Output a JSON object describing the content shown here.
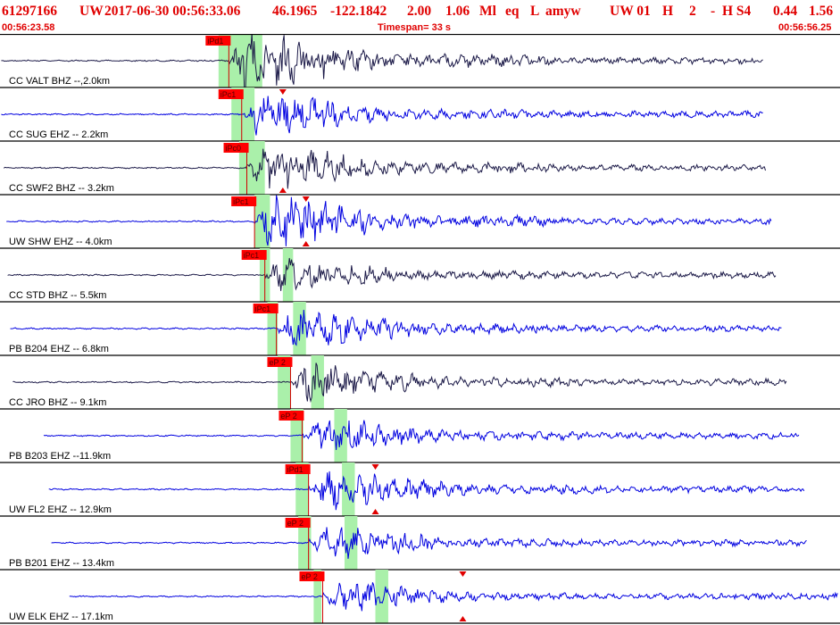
{
  "header": {
    "event_id": "61297166",
    "network": "UW",
    "datetime": "2017-06-30 00:56:33.06",
    "lat": "46.1965",
    "lon": "-122.1842",
    "depth": "2.00",
    "magnitude": "1.06",
    "mag_type": "Ml",
    "event_type": "eq",
    "status": "L",
    "analyst": "amyw",
    "solution": "UW 01",
    "quality": "H",
    "count": "2",
    "flag": "-",
    "review": "H S4",
    "rms": "0.44",
    "err": "1.56"
  },
  "time_bar": {
    "start": "00:56:23.58",
    "timespan": "Timespan=  33 s",
    "end": "00:56:56.25"
  },
  "colors": {
    "header_text": "#e00000",
    "divider": "#000000",
    "pick_flag": "#ff0000",
    "pick_line": "#d00000",
    "window": "#aaf0aa",
    "dark_trace": "#1c1a48",
    "blue_trace": "#0000e0",
    "label_text": "#000000",
    "marker": "#e00000"
  },
  "chart_data": {
    "type": "line",
    "title": "",
    "xlim": [
      0,
      32.67
    ],
    "traces": [
      {
        "label": "CC VALT BHZ --,2.0km",
        "pick": "iPd1",
        "pick_t": 8.9,
        "win": [
          [
            8.5,
            10.2
          ]
        ],
        "color": "dark",
        "start_t": 0.05,
        "end_t": 29.7,
        "amp": 1.0,
        "markers": []
      },
      {
        "label": "CC SUG EHZ -- 2.2km",
        "pick": "iPc1",
        "pick_t": 9.4,
        "win": [
          [
            9.0,
            9.9
          ]
        ],
        "color": "blue",
        "start_t": 0.05,
        "end_t": 29.7,
        "amp": 0.75,
        "markers": [
          {
            "t": 11.0,
            "dir": "down"
          }
        ]
      },
      {
        "label": "CC SWF2 BHZ -- 3.2km",
        "pick": "iPc0",
        "pick_t": 9.6,
        "win": [
          [
            9.3,
            10.3
          ]
        ],
        "color": "dark",
        "start_t": 0.15,
        "end_t": 29.8,
        "amp": 0.8,
        "markers": [
          {
            "t": 11.0,
            "dir": "up"
          }
        ]
      },
      {
        "label": "UW SHW EHZ -- 4.0km",
        "pick": "iPc1",
        "pick_t": 9.9,
        "win": [
          [
            9.9,
            10.5
          ]
        ],
        "color": "blue",
        "start_t": 0.25,
        "end_t": 30.0,
        "amp": 0.9,
        "markers": [
          {
            "t": 11.9,
            "dir": "down"
          },
          {
            "t": 11.9,
            "dir": "up"
          }
        ]
      },
      {
        "label": "CC STD BHZ -- 5.5km",
        "pick": "iPc1",
        "pick_t": 10.3,
        "win": [
          [
            10.1,
            10.5
          ],
          [
            11.0,
            11.4
          ]
        ],
        "color": "dark",
        "start_t": 0.3,
        "end_t": 30.2,
        "amp": 0.6,
        "markers": []
      },
      {
        "label": "PB B204 EHZ -- 6.8km",
        "pick": "iPc1",
        "pick_t": 10.75,
        "win": [
          [
            10.4,
            10.8
          ],
          [
            11.4,
            11.9
          ]
        ],
        "color": "blue",
        "start_t": 0.4,
        "end_t": 30.4,
        "amp": 0.75,
        "markers": []
      },
      {
        "label": "CC JRO BHZ -- 9.1km",
        "pick": "eP 2",
        "pick_t": 11.3,
        "win": [
          [
            10.8,
            11.3
          ],
          [
            12.1,
            12.6
          ]
        ],
        "color": "dark",
        "start_t": 0.5,
        "end_t": 30.6,
        "amp": 0.7,
        "markers": []
      },
      {
        "label": "PB B203 EHZ --11.9km",
        "pick": "eP 2",
        "pick_t": 11.75,
        "win": [
          [
            11.3,
            11.8
          ],
          [
            13.0,
            13.5
          ]
        ],
        "color": "blue",
        "start_t": 1.7,
        "end_t": 31.1,
        "amp": 0.65,
        "markers": []
      },
      {
        "label": "UW FL2 EHZ -- 12.9km",
        "pick": "iPd1",
        "pick_t": 12.0,
        "win": [
          [
            11.5,
            12.0
          ],
          [
            13.3,
            13.8
          ]
        ],
        "color": "blue",
        "start_t": 1.9,
        "end_t": 31.3,
        "amp": 0.7,
        "markers": [
          {
            "t": 14.6,
            "dir": "down"
          },
          {
            "t": 14.6,
            "dir": "up"
          }
        ]
      },
      {
        "label": "PB B201 EHZ -- 13.4km",
        "pick": "eP 2",
        "pick_t": 12.0,
        "win": [
          [
            11.6,
            12.1
          ],
          [
            13.4,
            13.9
          ]
        ],
        "color": "blue",
        "start_t": 2.0,
        "end_t": 31.4,
        "amp": 0.6,
        "markers": []
      },
      {
        "label": "UW ELK EHZ -- 17.1km",
        "pick": "eP 2",
        "pick_t": 12.55,
        "win": [
          [
            12.2,
            12.5
          ],
          [
            14.6,
            15.1
          ]
        ],
        "color": "blue",
        "start_t": 2.7,
        "end_t": 32.6,
        "amp": 0.55,
        "markers": [
          {
            "t": 18.0,
            "dir": "down"
          },
          {
            "t": 18.0,
            "dir": "up"
          }
        ]
      }
    ]
  }
}
